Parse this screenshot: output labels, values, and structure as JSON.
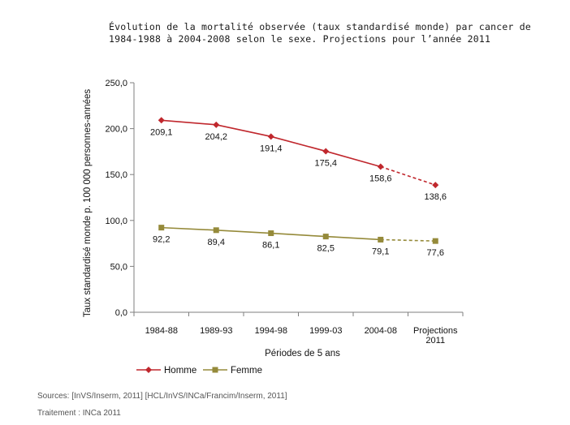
{
  "title_lines": [
    "Évolution de la mortalité observée (taux standardisé monde) par cancer de",
    "1984-1988 à 2004-2008 selon le sexe. Projections pour l’année 2011"
  ],
  "sources": "Sources: [InVS/Inserm, 2011] [HCL/InVS/INCa/Francim/Inserm, 2011]",
  "treatment": "Traitement : INCa 2011",
  "chart_data": {
    "type": "line",
    "categories": [
      "1984-88",
      "1989-93",
      "1994-98",
      "1999-03",
      "2004-08",
      "Projections 2011"
    ],
    "category_lines": [
      [
        "1984-88"
      ],
      [
        "1989-93"
      ],
      [
        "1994-98"
      ],
      [
        "1999-03"
      ],
      [
        "2004-08"
      ],
      [
        "Projections",
        "2011"
      ]
    ],
    "xlabel": "Périodes de 5 ans",
    "ylabel": "Taux standardisé monde p. 100 000 personnes-années",
    "ylim": [
      0,
      250
    ],
    "yticks": [
      0,
      50,
      100,
      150,
      200,
      250
    ],
    "ytick_labels": [
      "0,0",
      "50,0",
      "100,0",
      "150,0",
      "200,0",
      "250,0"
    ],
    "projection_index": 5,
    "legend_position": "bottom-left",
    "series": [
      {
        "name": "Homme",
        "values": [
          209.1,
          204.2,
          191.4,
          175.4,
          158.6,
          138.6
        ],
        "labels": [
          "209,1",
          "204,2",
          "191,4",
          "175,4",
          "158,6",
          "138,6"
        ],
        "color": "#c0272d",
        "marker": "diamond"
      },
      {
        "name": "Femme",
        "values": [
          92.2,
          89.4,
          86.1,
          82.5,
          79.1,
          77.6
        ],
        "labels": [
          "92,2",
          "89,4",
          "86,1",
          "82,5",
          "79,1",
          "77,6"
        ],
        "color": "#958a3a",
        "marker": "square"
      }
    ]
  }
}
